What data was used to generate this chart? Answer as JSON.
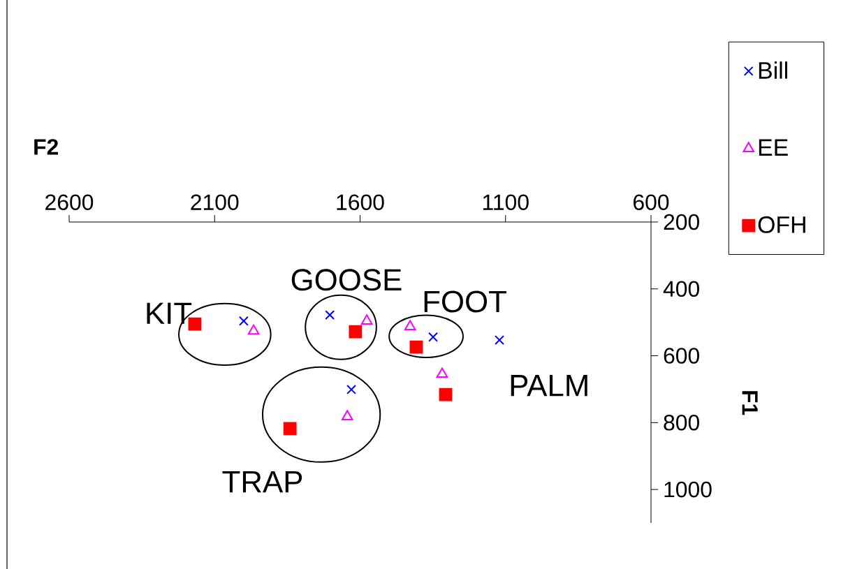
{
  "chart_data": {
    "type": "scatter",
    "xlabel": "F2",
    "ylabel": "F1",
    "xlim": [
      2600,
      600
    ],
    "ylim": [
      1100,
      200
    ],
    "xticks": [
      2600,
      2100,
      1600,
      1100,
      600
    ],
    "yticks": [
      200,
      400,
      600,
      800,
      1000
    ],
    "grid": false,
    "legend": "top right",
    "series": [
      {
        "name": "Bill",
        "color": "#0000ff",
        "marker": "cross",
        "x": [
          2000,
          1704,
          1349,
          1121,
          1630
        ],
        "values": [
          496,
          478,
          544,
          553,
          701
        ]
      },
      {
        "name": "EE",
        "color": "#ff00ff",
        "marker": "triangle",
        "x": [
          1966,
          1577,
          1428,
          1318,
          1644
        ],
        "values": [
          526,
          496,
          513,
          655,
          782
        ]
      },
      {
        "name": "OFH",
        "color": "#ff0000",
        "marker": "square",
        "x": [
          2168,
          1616,
          1407,
          1306,
          1841
        ],
        "values": [
          505,
          528,
          574,
          716,
          818
        ]
      }
    ],
    "annotations": [
      "KIT",
      "GOOSE",
      "FOOT",
      "PALM",
      "TRAP"
    ]
  }
}
